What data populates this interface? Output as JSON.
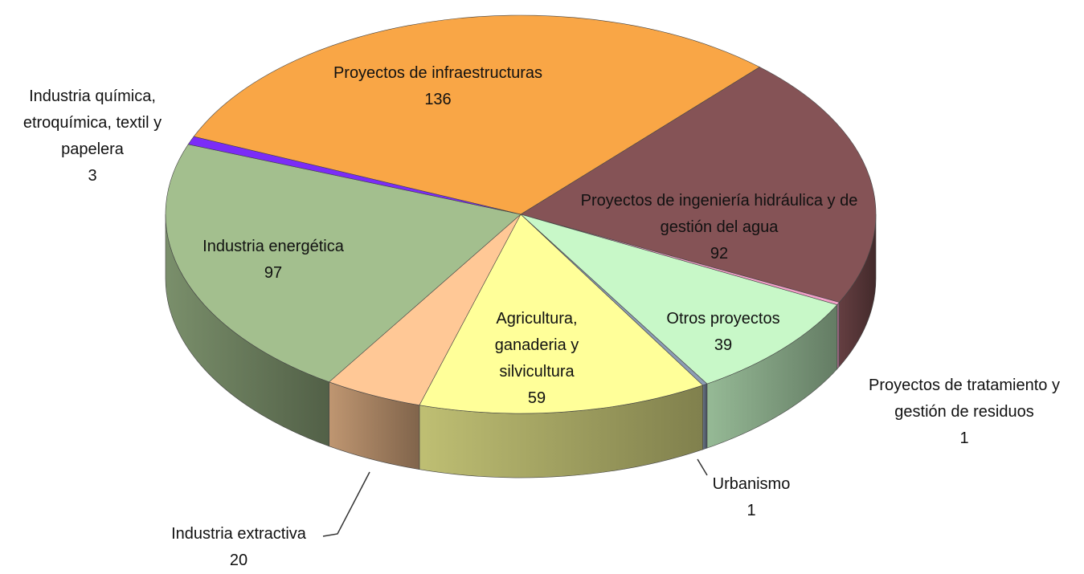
{
  "chart_data": {
    "type": "pie3d",
    "categories": [
      "Proyectos de infraestructuras",
      "Proyectos de ingeniería hidráulica y de gestión del agua",
      "Proyectos de tratamiento y gestión de residuos",
      "Otros proyectos",
      "Urbanismo",
      "Agricultura, ganaderia y silvicultura",
      "Industria extractiva",
      "Industria energética",
      "Industria química, etroquímica, textil y papelera"
    ],
    "values": [
      136,
      92,
      1,
      39,
      1,
      59,
      20,
      97,
      3
    ],
    "colors": [
      "#f9a646",
      "#855356",
      "#f2a0c8",
      "#c8f8c8",
      "#8c9cb4",
      "#ffff99",
      "#ffc896",
      "#a3bf8e",
      "#7b2cf7"
    ]
  }
}
